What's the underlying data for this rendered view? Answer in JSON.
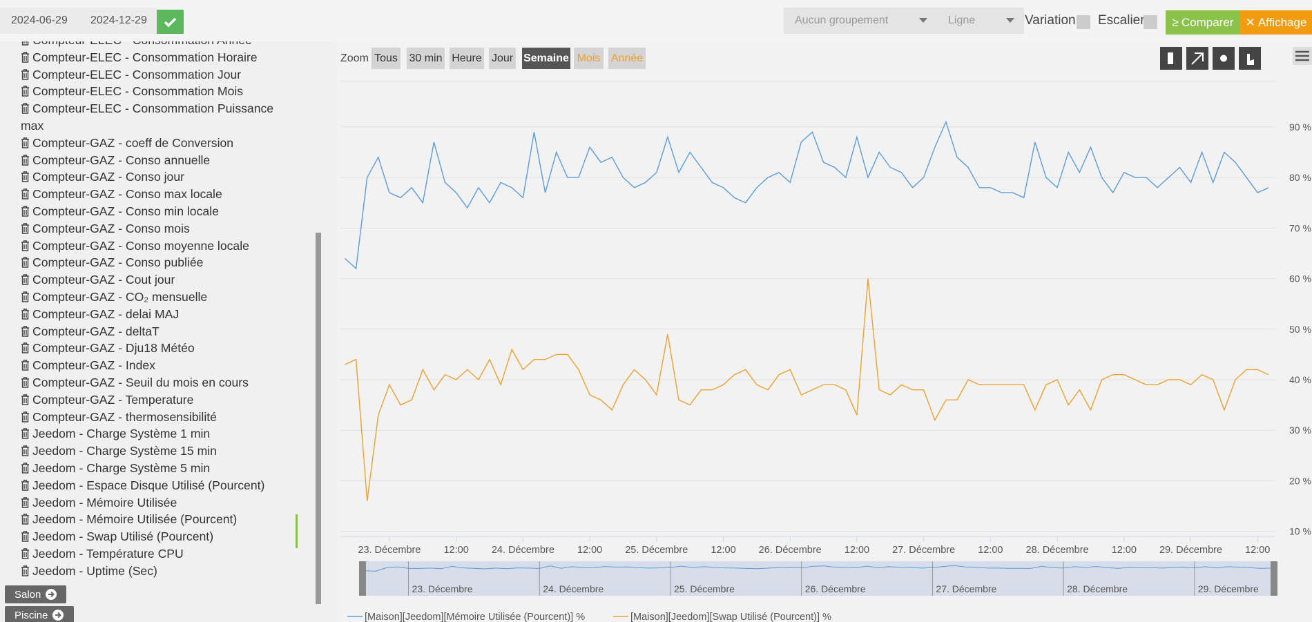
{
  "toolbar": {
    "date_start": "2024-06-29",
    "date_end": "2024-12-29",
    "grouping": "Aucun groupement",
    "chart_kind": "Ligne",
    "variation": "Variation",
    "stairs": "Escalier",
    "compare": "Comparer",
    "display": "Affichage"
  },
  "zoom": {
    "label": "Zoom",
    "buttons": [
      "Tous",
      "30 min",
      "Heure",
      "Jour",
      "Semaine",
      "Mois",
      "Année"
    ]
  },
  "sidebar": {
    "items": [
      "Compteur-ELEC - Consommation Année",
      "Compteur-ELEC - Consommation Horaire",
      "Compteur-ELEC - Consommation Jour",
      "Compteur-ELEC - Consommation Mois",
      "Compteur-ELEC - Consommation Puissance max",
      "Compteur-GAZ - coeff de Conversion",
      "Compteur-GAZ - Conso annuelle",
      "Compteur-GAZ - Conso jour",
      "Compteur-GAZ - Conso max locale",
      "Compteur-GAZ - Conso min locale",
      "Compteur-GAZ - Conso mois",
      "Compteur-GAZ - Conso moyenne locale",
      "Compteur-GAZ - Conso publiée",
      "Compteur-GAZ - Cout jour",
      "Compteur-GAZ - CO₂ mensuelle",
      "Compteur-GAZ - delai MAJ",
      "Compteur-GAZ - deltaT",
      "Compteur-GAZ - Dju18 Météo",
      "Compteur-GAZ - Index",
      "Compteur-GAZ - Seuil du mois en cours",
      "Compteur-GAZ - Temperature",
      "Compteur-GAZ - thermosensibilité",
      "Jeedom - Charge Système 1 min",
      "Jeedom - Charge Système 15 min",
      "Jeedom - Charge Système 5 min",
      "Jeedom - Espace Disque Utilisé (Pourcent)",
      "Jeedom - Mémoire Utilisée",
      "Jeedom - Mémoire Utilisée (Pourcent)",
      "Jeedom - Swap Utilisé (Pourcent)",
      "Jeedom - Température CPU",
      "Jeedom - Uptime (Sec)"
    ],
    "groups": [
      "Salon",
      "Piscine"
    ]
  },
  "chart_data": {
    "type": "line",
    "categories": [
      null,
      null,
      null,
      null,
      "23. Décembre",
      null,
      null,
      null,
      null,
      null,
      "12:00",
      null,
      null,
      null,
      null,
      null,
      "24. Décembre",
      null,
      null,
      null,
      null,
      null,
      "12:00",
      null,
      null,
      null,
      null,
      null,
      "25. Décembre",
      null,
      null,
      null,
      null,
      null,
      "12:00",
      null,
      null,
      null,
      null,
      null,
      "26. Décembre",
      null,
      null,
      null,
      null,
      null,
      "12:00",
      null,
      null,
      null,
      null,
      null,
      "27. Décembre",
      null,
      null,
      null,
      null,
      null,
      "12:00",
      null,
      null,
      null,
      null,
      null,
      "28. Décembre",
      null,
      null,
      null,
      null,
      null,
      "12:00",
      null,
      null,
      null,
      null,
      null,
      "29. Décembre",
      null,
      null,
      null,
      null,
      null,
      "12:00",
      null
    ],
    "series": [
      {
        "name": "[Maison][Jeedom][Mémoire Utilisée (Pourcent)] %",
        "color": "#5b9be0",
        "values": [
          64,
          62,
          80,
          84,
          77,
          76,
          78,
          75,
          87,
          79,
          77,
          74,
          78,
          75,
          79,
          78,
          76,
          89,
          77,
          85,
          80,
          80,
          86,
          83,
          84,
          80,
          78,
          79,
          81,
          88,
          81,
          85,
          82,
          79,
          78,
          76,
          75,
          78,
          80,
          81,
          79,
          87,
          89,
          83,
          82,
          80,
          88,
          80,
          85,
          82,
          81,
          78,
          80,
          86,
          91,
          84,
          82,
          78,
          78,
          77,
          77,
          76,
          87,
          80,
          78,
          85,
          81,
          86,
          80,
          77,
          81,
          80,
          80,
          78,
          80,
          82,
          79,
          85,
          79,
          85,
          83,
          80,
          77,
          78
        ]
      },
      {
        "name": "[Maison][Jeedom][Swap Utilisé (Pourcent)] %",
        "color": "#f0a02c",
        "values": [
          43,
          44,
          16,
          33,
          39,
          35,
          36,
          42,
          38,
          41,
          40,
          42,
          40,
          44,
          39,
          46,
          42,
          44,
          44,
          45,
          45,
          42,
          37,
          36,
          34,
          39,
          42,
          40,
          37,
          49,
          36,
          35,
          38,
          38,
          39,
          41,
          42,
          39,
          38,
          41,
          42,
          37,
          38,
          39,
          39,
          38,
          33,
          60,
          38,
          37,
          39,
          38,
          38,
          32,
          36,
          36,
          40,
          39,
          39,
          39,
          39,
          39,
          34,
          39,
          40,
          35,
          38,
          34,
          40,
          41,
          41,
          40,
          39,
          39,
          40,
          40,
          39,
          41,
          40,
          34,
          40,
          42,
          42,
          41
        ]
      }
    ],
    "ylim": [
      9,
      99
    ],
    "yticks": [
      {
        "value": 10,
        "label": "10 %"
      },
      {
        "value": 20,
        "label": "20 %"
      },
      {
        "value": 30,
        "label": "30 %"
      },
      {
        "value": 40,
        "label": "40 %"
      },
      {
        "value": 50,
        "label": "50 %"
      },
      {
        "value": 60,
        "label": "60 %"
      },
      {
        "value": 70,
        "label": "70 %"
      },
      {
        "value": 80,
        "label": "80 %"
      },
      {
        "value": 90,
        "label": "90 %"
      }
    ],
    "grid": true,
    "navigator_labels": [
      "23. Décembre",
      "24. Décembre",
      "25. Décembre",
      "26. Décembre",
      "27. Décembre",
      "28. Décembre",
      "29. Décembre"
    ]
  }
}
